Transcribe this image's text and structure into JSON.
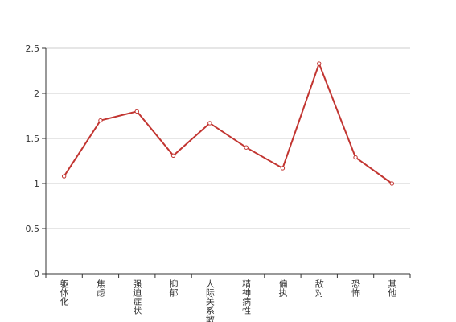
{
  "chart_data": {
    "type": "line",
    "categories": [
      "躯体化",
      "焦虑",
      "强迫症状",
      "抑郁",
      "人际关系敏感",
      "精神病性",
      "偏执",
      "敌对",
      "恐怖",
      "其他"
    ],
    "series": [
      {
        "color": "#c23531",
        "values": [
          1.08,
          1.7,
          1.8,
          1.31,
          1.67,
          1.4,
          1.17,
          2.33,
          1.29,
          1.0
        ]
      }
    ],
    "ylim": [
      0,
      2.5
    ],
    "yticks": [
      0,
      0.5,
      1,
      1.5,
      2,
      2.5
    ],
    "grid": true
  }
}
